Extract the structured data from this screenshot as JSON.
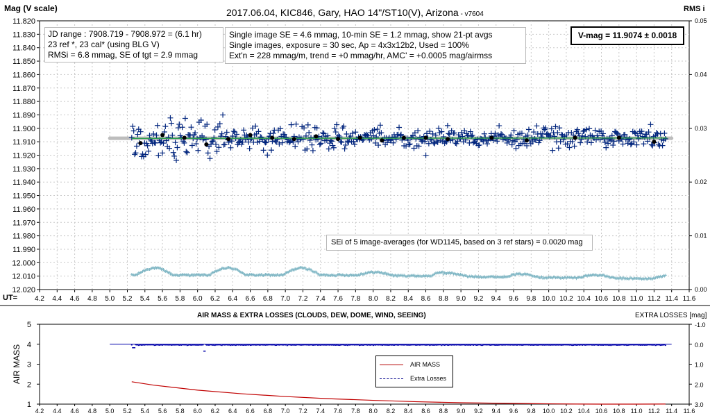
{
  "colors": {
    "measurement": "#00247d",
    "average": "#000000",
    "rms": "#7fb6c4",
    "trend": "#2e9e4f",
    "level_band": "#bdbdbd",
    "airmass": "#c00000",
    "extra_losses": "#0000aa",
    "grid_dash": "#c8c8c8",
    "frame": "#000000"
  },
  "header": {
    "title": "2017.06.04,  KIC846,  Gary, HAO 14\"/ST10(V), Arizona",
    "version": " - v7604",
    "y_left_label": "Mag (V scale)",
    "y_right_label": "RMS i",
    "x_axis_label": "UT="
  },
  "info_left": {
    "line1": "JD range : 7908.719  - 7908.972  = (6.1 hr)",
    "line2": "23 ref *, 23 cal* (using BLG V)",
    "line3": "RMSi = 6.8 mmag, SE of tgt = 2.9 mmag"
  },
  "info_mid": {
    "line1": "Single image SE = 4.6 mmag, 10-min SE = 1.2 mmag, show 21-pt avgs",
    "line2": "Single images, exposure = 30  sec, Ap = 4x3x12b2, Used = 100%",
    "line3": "Ext'n = 228 mmag/m, trend = +0 mmag/hr, AMC' = +0.0005 mag/airmss"
  },
  "vmag_box": {
    "text": "V-mag = 11.9074 ± 0.0018"
  },
  "sei_note": {
    "text": "SEi of 5 image-averages (for WD1145, based on 3 ref stars) = 0.0020 mag"
  },
  "bottom": {
    "title": "AIR MASS & EXTRA LOSSES (CLOUDS, DEW, DOME, WIND, SEEING)",
    "right_label": "EXTRA LOSSES [mag]",
    "y_left_label": "AIR MASS",
    "legend_airmass": "AIR MASS",
    "legend_losses": "Extra Losses"
  },
  "chart_data": [
    {
      "type": "scatter",
      "title": "2017.06.04,  KIC846,  Gary, HAO 14\"/ST10(V), Arizona",
      "xlabel": "UT=",
      "ylabel": "Mag (V scale)",
      "y2label": "RMS i",
      "xlim": [
        4.2,
        11.6
      ],
      "ylim": [
        12.02,
        11.82
      ],
      "y2lim": [
        0.0,
        0.05
      ],
      "x_ticks": [
        "4.2",
        "4.4",
        "4.6",
        "4.8",
        "5.0",
        "5.2",
        "5.4",
        "5.6",
        "5.8",
        "6.0",
        "6.2",
        "6.4",
        "6.6",
        "6.8",
        "7.0",
        "7.2",
        "7.4",
        "7.6",
        "7.8",
        "8.0",
        "8.2",
        "8.4",
        "8.6",
        "8.8",
        "9.0",
        "9.2",
        "9.4",
        "9.6",
        "9.8",
        "10.0",
        "10.2",
        "10.4",
        "10.6",
        "10.8",
        "11.0",
        "11.2",
        "11.4",
        "11.6"
      ],
      "y_ticks": [
        "11.820",
        "11.830",
        "11.840",
        "11.850",
        "11.860",
        "11.870",
        "11.880",
        "11.890",
        "11.900",
        "11.910",
        "11.920",
        "11.930",
        "11.940",
        "11.950",
        "11.960",
        "11.970",
        "11.980",
        "11.990",
        "12.000",
        "12.010",
        "12.020"
      ],
      "y2_ticks": [
        "0.05",
        "0.04",
        "0.03",
        "0.02",
        "0.01",
        "0.00"
      ],
      "grid": true,
      "level": 11.9074,
      "level_range": [
        5.0,
        11.4
      ],
      "trend": {
        "x": [
          5.25,
          11.35
        ],
        "y": [
          11.9075,
          11.9072
        ]
      },
      "average_series": {
        "name": "21-pt avgs",
        "x": [
          5.35,
          5.6,
          5.85,
          6.1,
          6.35,
          6.6,
          6.85,
          7.1,
          7.35,
          7.6,
          7.85,
          8.1,
          8.35,
          8.6,
          8.85,
          9.35,
          9.75,
          10.3,
          10.8,
          11.2
        ],
        "y": [
          11.911,
          11.905,
          11.907,
          11.912,
          11.908,
          11.905,
          11.907,
          11.908,
          11.906,
          11.908,
          11.907,
          11.909,
          11.907,
          11.907,
          11.908,
          11.907,
          11.909,
          11.907,
          11.907,
          11.91
        ]
      },
      "measurement_series": {
        "count": 540,
        "x_range": [
          5.25,
          11.33
        ],
        "mean": 11.9074,
        "rmsi_mag": 0.0068
      },
      "rms_series": {
        "x_range": [
          5.25,
          11.33
        ],
        "y_range": [
          0.0015,
          0.0045
        ]
      }
    },
    {
      "type": "line",
      "title": "AIR MASS & EXTRA LOSSES (CLOUDS, DEW, DOME, WIND, SEEING)",
      "ylabel": "AIR MASS",
      "y2label": "EXTRA LOSSES [mag]",
      "xlim": [
        4.2,
        11.6
      ],
      "ylim": [
        1,
        5
      ],
      "y2lim": [
        3.0,
        -1.0
      ],
      "x_ticks": [
        "4.2",
        "4.4",
        "4.6",
        "4.8",
        "5.0",
        "5.2",
        "5.4",
        "5.6",
        "5.8",
        "6.0",
        "6.2",
        "6.4",
        "6.6",
        "6.8",
        "7.0",
        "7.2",
        "7.4",
        "7.6",
        "7.8",
        "8.0",
        "8.2",
        "8.4",
        "8.6",
        "8.8",
        "9.0",
        "9.2",
        "9.4",
        "9.6",
        "9.8",
        "10.0",
        "10.2",
        "10.4",
        "10.6",
        "10.8",
        "11.0",
        "11.2",
        "11.4",
        "11.6"
      ],
      "y_ticks": [
        "5",
        "4",
        "3",
        "2",
        "1"
      ],
      "y2_ticks": [
        "-1.0",
        "0.0",
        "1.0",
        "2.0",
        "3.0"
      ],
      "series": [
        {
          "name": "AIR MASS",
          "x": [
            5.25,
            5.5,
            6.0,
            6.5,
            7.0,
            7.5,
            8.0,
            8.5,
            9.0,
            9.5,
            10.0,
            10.3,
            10.6,
            11.0,
            11.33
          ],
          "y": [
            2.12,
            1.95,
            1.7,
            1.52,
            1.38,
            1.27,
            1.19,
            1.12,
            1.07,
            1.04,
            1.015,
            1.005,
            1.0,
            1.0,
            1.005
          ]
        },
        {
          "name": "Extra Losses",
          "x_range": [
            5.25,
            11.33
          ],
          "base": 0.0,
          "dips": [
            {
              "x": 5.27,
              "y": 0.15
            },
            {
              "x": 6.08,
              "y": 0.32
            }
          ]
        }
      ],
      "flat_line": {
        "x": [
          5.0,
          11.4
        ],
        "y": 0.0
      }
    }
  ]
}
